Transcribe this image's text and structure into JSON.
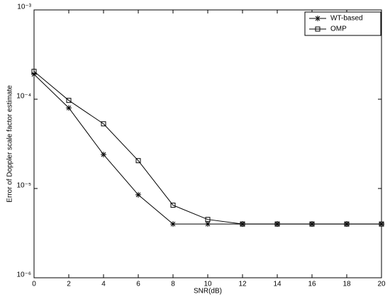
{
  "chart_data": {
    "type": "line",
    "x_label": "SNR(dB)",
    "y_label": "Error of Doppler scale factor estimate",
    "x": [
      0,
      2,
      4,
      6,
      8,
      10,
      12,
      14,
      16,
      18,
      20
    ],
    "series": [
      {
        "name": "WT-based",
        "color": "#000000",
        "marker": "asterisk",
        "values": [
          0.00019,
          8e-05,
          2.4e-05,
          8.5e-06,
          4e-06,
          4e-06,
          4e-06,
          4e-06,
          4e-06,
          4e-06,
          4e-06
        ]
      },
      {
        "name": "OMP",
        "color": "#000000",
        "marker": "square",
        "values": [
          0.000205,
          9.7e-05,
          5.3e-05,
          2.05e-05,
          6.5e-06,
          4.5e-06,
          4e-06,
          4e-06,
          4e-06,
          4e-06,
          4e-06
        ]
      }
    ],
    "xlim": [
      0,
      20
    ],
    "xticks": [
      0,
      2,
      4,
      6,
      8,
      10,
      12,
      14,
      16,
      18,
      20
    ],
    "ylim": [
      1e-06,
      0.001
    ],
    "yscale": "log",
    "yticks": [
      {
        "value": 1e-06,
        "label": "10⁻⁶"
      },
      {
        "value": 1e-05,
        "label": "10⁻⁵"
      },
      {
        "value": 0.0001,
        "label": "10⁻⁴"
      },
      {
        "value": 0.001,
        "label": "10⁻³"
      }
    ],
    "legend": "upper right"
  }
}
